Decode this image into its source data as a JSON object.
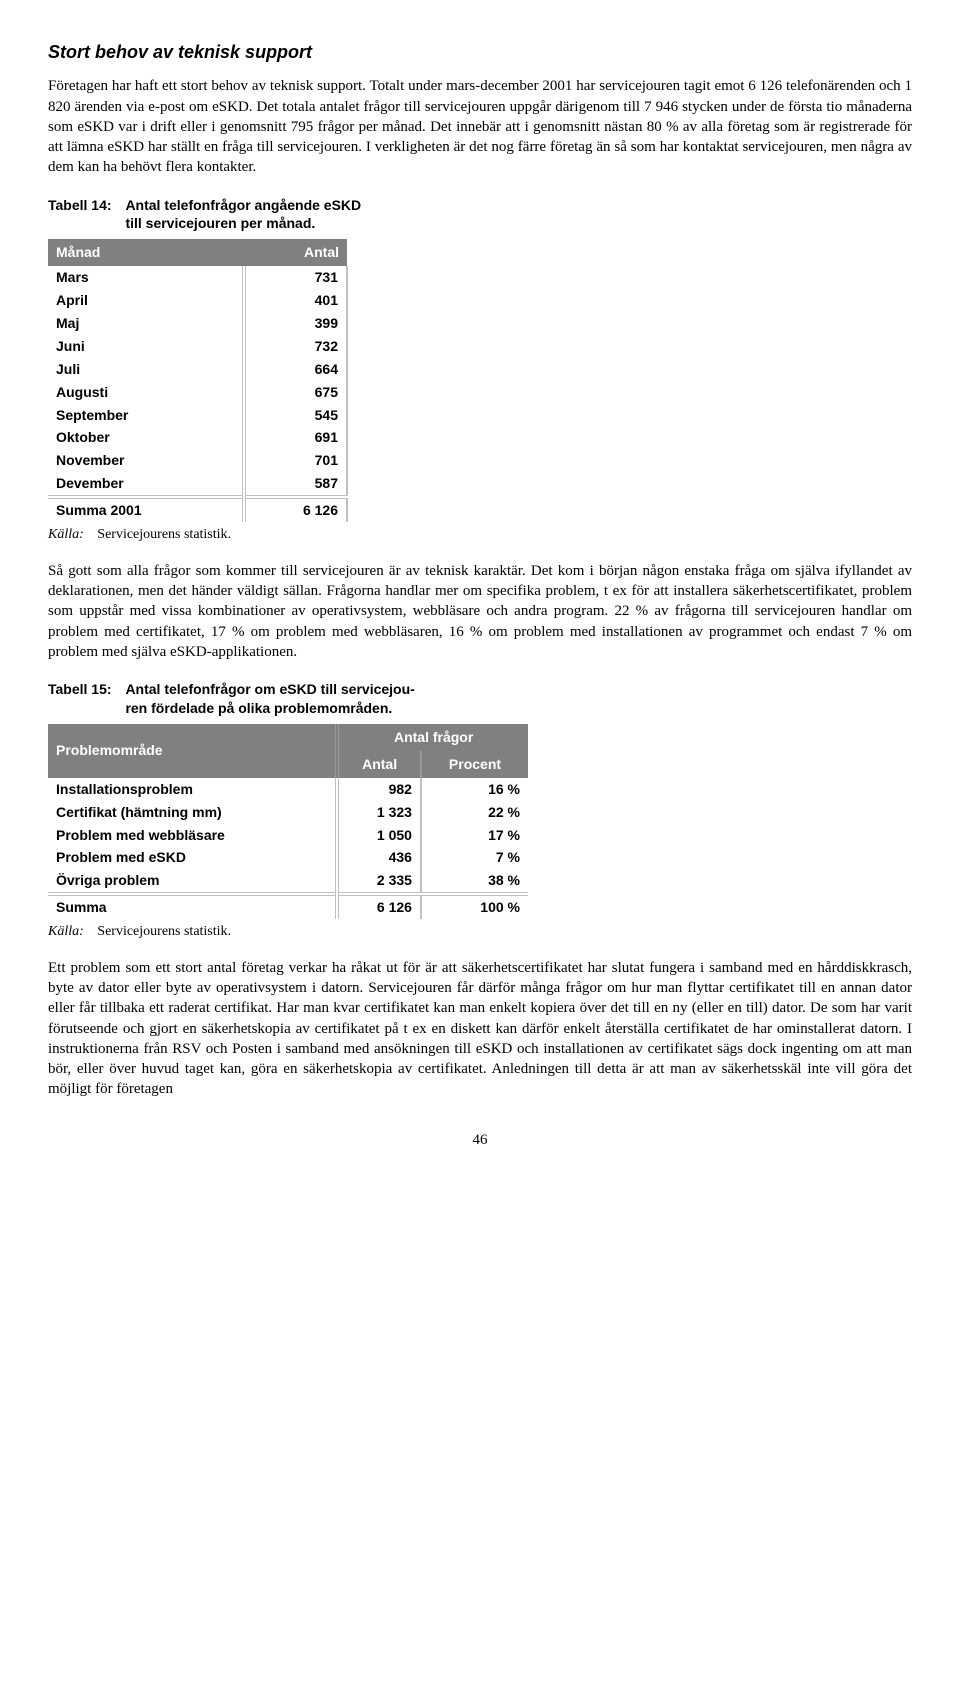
{
  "heading": "Stort behov av teknisk support",
  "para1": "Företagen har haft ett stort behov av teknisk support. Totalt under mars-december 2001 har servicejouren tagit emot 6 126 telefonärenden och 1 820 ärenden via e-post om eSKD. Det totala antalet frågor till servicejouren uppgår därigenom till 7 946 stycken under de första tio månaderna som eSKD var i drift eller i genomsnitt 795 frågor per månad. Det innebär att i genomsnitt nästan 80 % av alla företag som är registrerade för att lämna eSKD har ställt en fråga till servicejouren. I verkligheten är det nog färre företag än så som har kontaktat servicejouren, men några av dem kan ha behövt flera kontakter.",
  "table14": {
    "caption_label": "Tabell 14:",
    "caption_title": "Antal telefonfrågor angående eSKD\ntill servicejouren per månad.",
    "columns": [
      "Månad",
      "Antal"
    ],
    "rows": [
      [
        "Mars",
        "731"
      ],
      [
        "April",
        "401"
      ],
      [
        "Maj",
        "399"
      ],
      [
        "Juni",
        "732"
      ],
      [
        "Juli",
        "664"
      ],
      [
        "Augusti",
        "675"
      ],
      [
        "September",
        "545"
      ],
      [
        "Oktober",
        "691"
      ],
      [
        "November",
        "701"
      ],
      [
        "Devember",
        "587"
      ]
    ],
    "sum_row": [
      "Summa 2001",
      "6 126"
    ],
    "source_label": "Källa:",
    "source_text": "Servicejourens statistik."
  },
  "para2": "Så gott som alla frågor som kommer till servicejouren är av teknisk karaktär. Det kom i början någon enstaka fråga om själva ifyllandet av deklarationen, men det händer väldigt sällan. Frågorna handlar mer om specifika problem, t ex för att installera säkerhetscertifikatet, problem som uppstår med vissa kombinationer av operativsystem, webbläsare och andra program. 22 % av frågorna till servicejouren handlar om problem med certifikatet, 17 % om problem med webbläsaren, 16 % om problem med installationen av programmet och endast 7 % om problem med själva eSKD-applikationen.",
  "table15": {
    "caption_label": "Tabell 15:",
    "caption_title": "Antal telefonfrågor om eSKD till servicejou-\nren fördelade på olika problemområden.",
    "header_main": "Problemområde",
    "header_group": "Antal frågor",
    "sub_headers": [
      "Antal",
      "Procent"
    ],
    "rows": [
      [
        "Installationsproblem",
        "982",
        "16 %"
      ],
      [
        "Certifikat (hämtning mm)",
        "1 323",
        "22 %"
      ],
      [
        "Problem med webbläsare",
        "1 050",
        "17 %"
      ],
      [
        "Problem med eSKD",
        "436",
        "7 %"
      ],
      [
        "Övriga problem",
        "2 335",
        "38 %"
      ]
    ],
    "sum_row": [
      "Summa",
      "6 126",
      "100 %"
    ],
    "source_label": "Källa:",
    "source_text": "Servicejourens statistik."
  },
  "para3": "Ett problem som ett stort antal företag verkar ha råkat ut för är att säkerhetscertifikatet har slutat fungera i samband med en hårddiskkrasch, byte av dator eller byte av operativsystem i datorn. Servicejouren får därför många frågor om hur man flyttar certifikatet till en annan dator eller får tillbaka ett raderat certifikat. Har man kvar certifikatet kan man enkelt kopiera över det till en ny (eller en till) dator. De som har varit förutseende och gjort en säkerhetskopia av certifikatet på t ex en diskett kan därför enkelt återställa certifikatet de har ominstallerat datorn. I instruktionerna från RSV och Posten i samband med ansökningen till eSKD och installationen av certifikatet sägs dock ingenting om att man bör, eller över huvud taget kan, göra en säkerhetskopia av certifikatet. Anledningen till detta är att man av säkerhetsskäl inte vill göra det möjligt för företagen",
  "page_number": "46"
}
